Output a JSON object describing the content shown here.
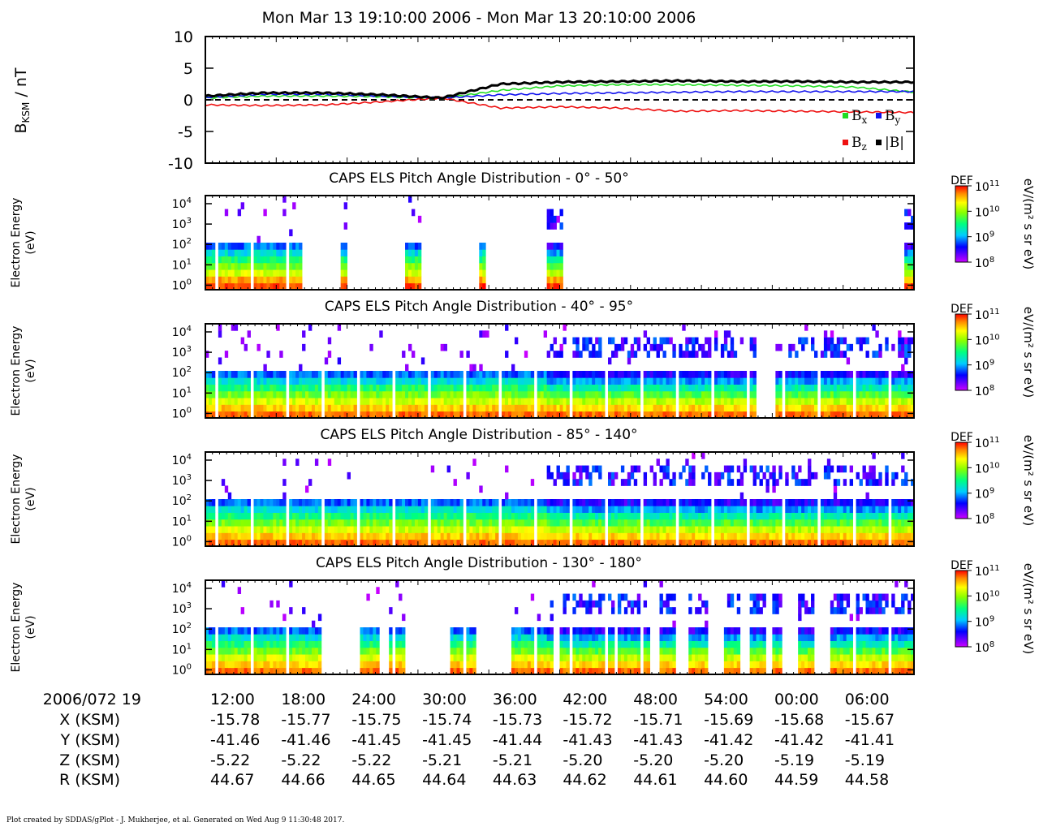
{
  "title": "Mon Mar 13 19:10:00 2006 - Mon Mar 13 20:10:00 2006",
  "credit": "Plot created by SDDAS/gPlot - J. Mukherjee, et al.  Generated on Wed Aug 9 11:30:48 2017.",
  "colors": {
    "bx": "#22dd22",
    "by": "#1111ee",
    "bz": "#ee1111",
    "btotal": "#000000"
  },
  "chart_data": [
    {
      "type": "line",
      "ylabel_main": "B",
      "ylabel_sub": "KSM",
      "ylabel_tail": " / nT",
      "ylim": [
        -10,
        10
      ],
      "yticks": [
        "10",
        "5",
        "0",
        "-5",
        "-10"
      ],
      "zero_line": true,
      "legend_position": "bottom-right",
      "x": [
        0,
        5,
        10,
        15,
        20,
        25,
        30,
        35,
        40,
        45,
        50,
        55,
        60
      ],
      "series": [
        {
          "key": "bx",
          "name": "B",
          "sub": "x",
          "values": [
            0.3,
            0.6,
            0.6,
            0.5,
            0.2,
            1.5,
            2.2,
            2.4,
            2.4,
            2.3,
            2.2,
            2.0,
            1.2
          ]
        },
        {
          "key": "by",
          "name": "B",
          "sub": "y",
          "values": [
            0.4,
            0.9,
            0.9,
            0.6,
            0.3,
            0.8,
            1.0,
            1.1,
            1.2,
            1.3,
            1.3,
            1.3,
            1.3
          ]
        },
        {
          "key": "bz",
          "name": "B",
          "sub": "z",
          "values": [
            -0.8,
            -0.9,
            -0.8,
            -0.3,
            0.3,
            -1.3,
            -1.1,
            -1.3,
            -1.8,
            -1.7,
            -1.8,
            -1.9,
            -2.0
          ]
        },
        {
          "key": "btotal",
          "name": "|B|",
          "sub": "",
          "values": [
            0.6,
            1.1,
            1.1,
            0.8,
            0.3,
            2.5,
            2.8,
            2.9,
            3.0,
            2.9,
            2.9,
            2.8,
            2.8
          ]
        }
      ]
    },
    {
      "type": "heatmap",
      "title": "CAPS ELS Pitch Angle Distribution - 0° - 50°",
      "ylabel": [
        "Electron Energy",
        "(eV)"
      ],
      "yscale": "log",
      "ylim": [
        0.6,
        25000
      ],
      "colorbar": {
        "label": "DEF",
        "units": "eV/(m² s sr eV)",
        "range_exponents": [
          8,
          11
        ]
      },
      "data_intervals_min": [
        [
          0,
          13.5
        ],
        [
          19.2,
          19.9
        ],
        [
          28.3,
          30.6
        ],
        [
          38.8,
          39.7
        ],
        [
          48.3,
          50.3
        ],
        [
          98.7,
          100
        ]
      ]
    },
    {
      "type": "heatmap",
      "title": "CAPS ELS Pitch Angle Distribution - 40° - 95°",
      "ylabel": [
        "Electron Energy",
        "(eV)"
      ],
      "yscale": "log",
      "ylim": [
        0.6,
        25000
      ],
      "colorbar": {
        "label": "DEF",
        "units": "eV/(m² s sr eV)",
        "range_exponents": [
          8,
          11
        ]
      },
      "data_intervals_min": [
        [
          0,
          77.5
        ],
        [
          80.5,
          100
        ]
      ]
    },
    {
      "type": "heatmap",
      "title": "CAPS ELS Pitch Angle Distribution - 85° - 140°",
      "ylabel": [
        "Electron Energy",
        "(eV)"
      ],
      "yscale": "log",
      "ylim": [
        0.6,
        25000
      ],
      "colorbar": {
        "label": "DEF",
        "units": "eV/(m² s sr eV)",
        "range_exponents": [
          8,
          11
        ]
      },
      "data_intervals_min": [
        [
          0,
          100
        ]
      ]
    },
    {
      "type": "heatmap",
      "title": "CAPS ELS Pitch Angle Distribution - 130° - 180°",
      "ylabel": [
        "Electron Energy",
        "(eV)"
      ],
      "yscale": "log",
      "ylim": [
        0.6,
        25000
      ],
      "colorbar": {
        "label": "DEF",
        "units": "eV/(m² s sr eV)",
        "range_exponents": [
          8,
          11
        ]
      },
      "data_intervals_min": [
        [
          0,
          16.3
        ],
        [
          22.0,
          24.4
        ],
        [
          26.0,
          28.2
        ],
        [
          34.6,
          38.3
        ],
        [
          43.0,
          49.2
        ],
        [
          49.8,
          57.5
        ],
        [
          58.3,
          62.6
        ],
        [
          64.0,
          66.6
        ],
        [
          68.4,
          71.0
        ],
        [
          73.0,
          75.4
        ],
        [
          76.5,
          79.0
        ],
        [
          80.0,
          81.8
        ],
        [
          83.7,
          86.0
        ],
        [
          88.3,
          100
        ]
      ]
    }
  ],
  "time_axis": {
    "row_labels": [
      "2006/072 19",
      "X (KSM)",
      "Y (KSM)",
      "Z (KSM)",
      "R (KSM)"
    ],
    "ticks": [
      {
        "label": "12:00",
        "x": "-15.78",
        "y": "-41.46",
        "z": "-5.22",
        "r": "44.67"
      },
      {
        "label": "18:00",
        "x": "-15.77",
        "y": "-41.46",
        "z": "-5.22",
        "r": "44.66"
      },
      {
        "label": "24:00",
        "x": "-15.75",
        "y": "-41.45",
        "z": "-5.22",
        "r": "44.65"
      },
      {
        "label": "30:00",
        "x": "-15.74",
        "y": "-41.45",
        "z": "-5.21",
        "r": "44.64"
      },
      {
        "label": "36:00",
        "x": "-15.73",
        "y": "-41.44",
        "z": "-5.21",
        "r": "44.63"
      },
      {
        "label": "42:00",
        "x": "-15.72",
        "y": "-41.43",
        "z": "-5.20",
        "r": "44.62"
      },
      {
        "label": "48:00",
        "x": "-15.71",
        "y": "-41.43",
        "z": "-5.20",
        "r": "44.61"
      },
      {
        "label": "54:00",
        "x": "-15.69",
        "y": "-41.42",
        "z": "-5.20",
        "r": "44.60"
      },
      {
        "label": "00:00",
        "x": "-15.68",
        "y": "-41.42",
        "z": "-5.19",
        "r": "44.59"
      },
      {
        "label": "06:00",
        "x": "-15.67",
        "y": "-41.41",
        "z": "-5.19",
        "r": "44.58"
      }
    ]
  }
}
